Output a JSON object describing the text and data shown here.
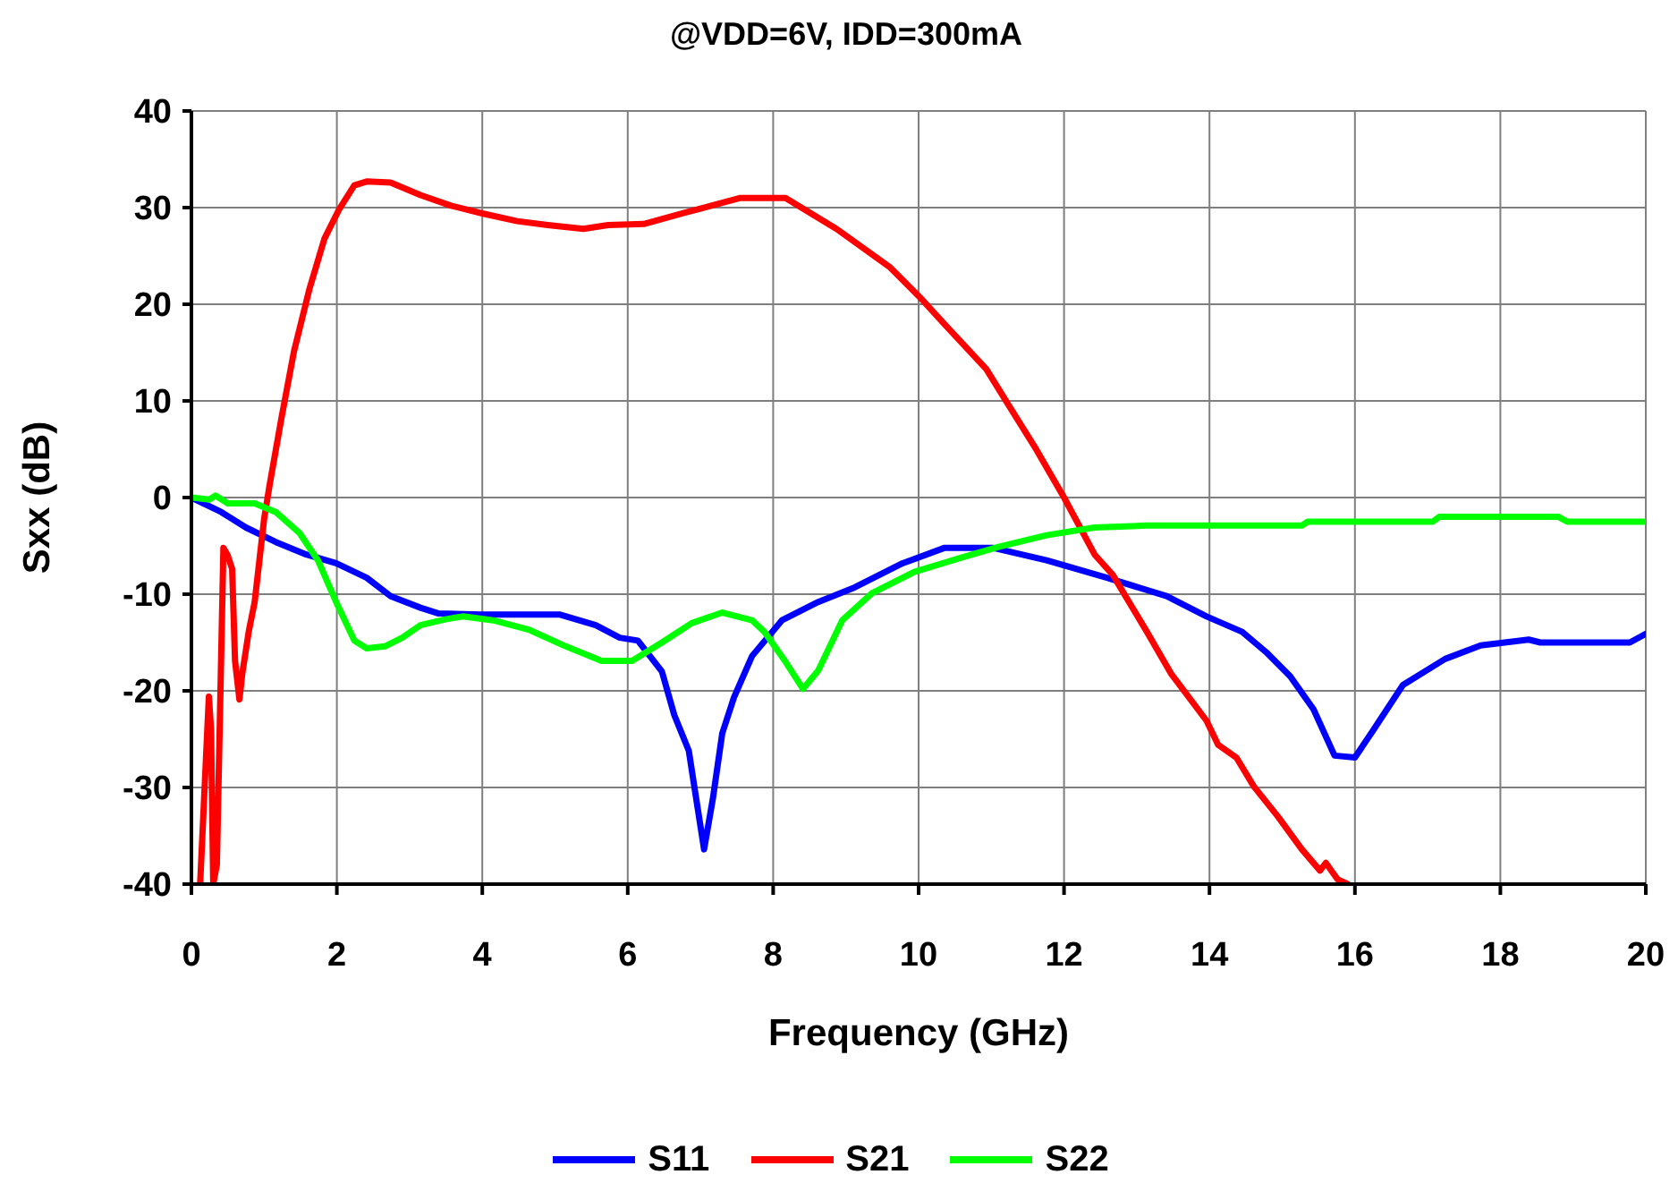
{
  "chart_data": {
    "type": "line",
    "title": "@VDD=6V, IDD=300mA",
    "xlabel": "Frequency (GHz)",
    "ylabel": "Sxx (dB)",
    "xlim": [
      0,
      20
    ],
    "xticks": [
      0,
      2,
      4,
      6,
      8,
      10,
      12,
      14,
      16,
      18,
      20
    ],
    "ylim": [
      -40,
      40
    ],
    "yticks": [
      -40,
      -30,
      -20,
      -10,
      0,
      10,
      20,
      30,
      40
    ],
    "grid": true,
    "legend": "bottom",
    "line_style": "solid",
    "series": [
      {
        "name": "S11",
        "color": "#0000ff",
        "x": [
          0,
          0.41,
          0.75,
          1.16,
          1.58,
          1.99,
          2.41,
          2.74,
          3.15,
          3.4,
          3.98,
          5.06,
          5.56,
          5.89,
          6.14,
          6.47,
          6.64,
          6.84,
          6.93,
          7.05,
          7.17,
          7.3,
          7.46,
          7.71,
          8.12,
          8.62,
          9.12,
          9.78,
          10.36,
          11.02,
          11.76,
          12.59,
          13.41,
          13.96,
          14.45,
          14.78,
          15.11,
          15.43,
          15.72,
          16.0,
          16.25,
          16.66,
          17.24,
          17.73,
          18.39,
          18.55,
          19.78,
          20.0
        ],
        "values": [
          0,
          -1.5,
          -3.1,
          -4.6,
          -5.9,
          -6.8,
          -8.3,
          -10.2,
          -11.4,
          -12.0,
          -12.1,
          -12.1,
          -13.2,
          -14.5,
          -14.8,
          -18.0,
          -22.5,
          -26.2,
          -30.6,
          -36.4,
          -31.2,
          -24.4,
          -20.7,
          -16.4,
          -12.7,
          -10.8,
          -9.3,
          -6.8,
          -5.2,
          -5.2,
          -6.5,
          -8.3,
          -10.2,
          -12.3,
          -13.9,
          -16.0,
          -18.5,
          -21.9,
          -26.7,
          -26.9,
          -24.1,
          -19.4,
          -16.7,
          -15.3,
          -14.7,
          -15.0,
          -15.0,
          -14.1
        ]
      },
      {
        "name": "S21",
        "color": "#ff0000",
        "x": [
          0.12,
          0.2,
          0.24,
          0.27,
          0.3,
          0.35,
          0.44,
          0.5,
          0.56,
          0.6,
          0.66,
          0.7,
          0.79,
          0.87,
          1.0,
          1.08,
          1.24,
          1.41,
          1.62,
          1.83,
          2.03,
          2.24,
          2.41,
          2.74,
          3.15,
          3.57,
          4.0,
          4.48,
          4.9,
          5.39,
          5.73,
          6.22,
          6.8,
          7.0,
          7.55,
          8.17,
          8.87,
          9.61,
          10.02,
          10.36,
          10.93,
          11.26,
          11.6,
          12.0,
          12.42,
          12.67,
          13.14,
          13.47,
          13.96,
          14.12,
          14.37,
          14.61,
          14.94,
          15.27,
          15.52,
          15.6,
          15.76,
          15.9
        ],
        "values": [
          -40,
          -27,
          -20.6,
          -24,
          -40,
          -38,
          -5.2,
          -6,
          -7.4,
          -16.9,
          -20.9,
          -18.2,
          -13.8,
          -10.8,
          -2.2,
          1.5,
          8.3,
          15.1,
          21.5,
          26.8,
          29.8,
          32.3,
          32.7,
          32.6,
          31.3,
          30.2,
          29.4,
          28.6,
          28.2,
          27.8,
          28.2,
          28.3,
          29.5,
          29.9,
          31.0,
          31.0,
          27.8,
          23.8,
          20.7,
          17.9,
          13.3,
          9.3,
          5.2,
          0,
          -5.9,
          -8.0,
          -13.9,
          -18.2,
          -23.1,
          -25.6,
          -26.9,
          -29.9,
          -33.0,
          -36.4,
          -38.6,
          -37.8,
          -39.5,
          -40
        ]
      },
      {
        "name": "S22",
        "color": "#00ff00",
        "x": [
          0,
          0.25,
          0.33,
          0.5,
          0.87,
          1.16,
          1.49,
          1.74,
          1.99,
          2.24,
          2.41,
          2.66,
          2.9,
          3.15,
          3.49,
          3.73,
          4.15,
          4.65,
          5.15,
          5.64,
          6.06,
          6.47,
          6.88,
          7.3,
          7.71,
          7.88,
          8.17,
          8.41,
          8.62,
          8.95,
          9.36,
          9.94,
          10.6,
          11.1,
          11.76,
          12.42,
          13.14,
          15.27,
          15.35,
          17.07,
          17.16,
          18.8,
          18.92,
          20.0
        ],
        "values": [
          0,
          -0.2,
          0.2,
          -0.6,
          -0.6,
          -1.5,
          -3.7,
          -6.5,
          -10.8,
          -14.8,
          -15.6,
          -15.4,
          -14.5,
          -13.2,
          -12.6,
          -12.3,
          -12.7,
          -13.7,
          -15.4,
          -16.9,
          -16.9,
          -15.0,
          -13.0,
          -11.9,
          -12.7,
          -13.9,
          -17.0,
          -19.8,
          -17.9,
          -12.7,
          -9.9,
          -7.7,
          -6.2,
          -5.1,
          -3.9,
          -3.1,
          -2.9,
          -2.9,
          -2.5,
          -2.5,
          -2.0,
          -2.0,
          -2.5,
          -2.5
        ]
      }
    ]
  }
}
